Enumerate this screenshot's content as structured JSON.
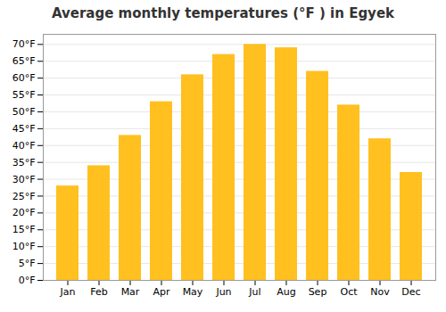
{
  "chart_data": {
    "type": "bar",
    "title": "Average monthly temperatures (°F ) in Egyek",
    "categories": [
      "Jan",
      "Feb",
      "Mar",
      "Apr",
      "May",
      "Jun",
      "Jul",
      "Aug",
      "Sep",
      "Oct",
      "Nov",
      "Dec"
    ],
    "values": [
      28,
      34,
      43,
      53,
      61,
      67,
      70,
      69,
      62,
      52,
      42,
      32
    ],
    "color": "#FFC020",
    "ylim": [
      0,
      73
    ],
    "yticks": [
      {
        "value": 0,
        "label": "0°F"
      },
      {
        "value": 5,
        "label": "5°F"
      },
      {
        "value": 10,
        "label": "10°F"
      },
      {
        "value": 15,
        "label": "15°F"
      },
      {
        "value": 20,
        "label": "20°F"
      },
      {
        "value": 25,
        "label": "25°F"
      },
      {
        "value": 30,
        "label": "30°F"
      },
      {
        "value": 35,
        "label": "35°F"
      },
      {
        "value": 40,
        "label": "40°F"
      },
      {
        "value": 45,
        "label": "45°F"
      },
      {
        "value": 50,
        "label": "50°F"
      },
      {
        "value": 55,
        "label": "55°F"
      },
      {
        "value": 60,
        "label": "60°F"
      },
      {
        "value": 65,
        "label": "65°F"
      },
      {
        "value": 70,
        "label": "70°F"
      }
    ],
    "grid": true
  }
}
